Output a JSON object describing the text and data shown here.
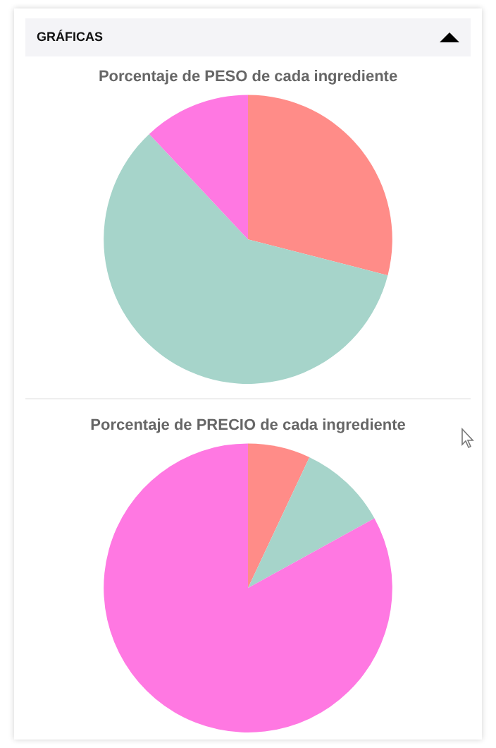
{
  "chart_data": [
    {
      "type": "pie",
      "title": "Porcentaje de PESO de cada ingrediente",
      "annotations": [
        "GRÁFICAS"
      ],
      "categories": [
        null,
        null,
        null
      ],
      "values": [
        29,
        59,
        12
      ],
      "colors": [
        "#ff8c88",
        "#a6d4ca",
        "#ff78e2"
      ],
      "legend": false
    },
    {
      "type": "pie",
      "title": "Porcentaje de PRECIO de cada ingrediente",
      "categories": [
        null,
        null,
        null
      ],
      "values": [
        7,
        10,
        83
      ],
      "colors": [
        "#ff8c88",
        "#a6d4ca",
        "#ff78e2"
      ],
      "legend": false
    }
  ]
}
